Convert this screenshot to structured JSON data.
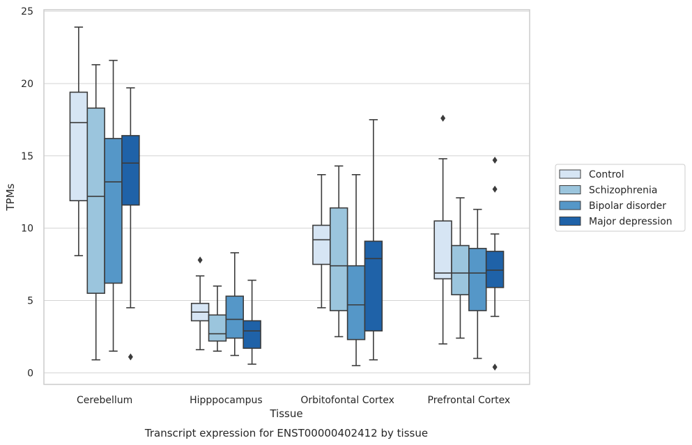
{
  "chart_data": {
    "type": "box",
    "title": "",
    "caption": "Transcript expression for ENST00000402412 by tissue",
    "xlabel": "Tissue",
    "ylabel": "TPMs",
    "ylim": [
      -0.8,
      25.1
    ],
    "yticks": [
      "0",
      "5",
      "10",
      "15",
      "20",
      "25"
    ],
    "grid": "horizontal",
    "legend_position": "right",
    "categories": [
      "Cerebellum",
      "Hipppocampus",
      "Orbitofontal Cortex",
      "Prefrontal Cortex"
    ],
    "series": [
      {
        "name": "Control",
        "color": "#d6e5f4",
        "boxes": [
          {
            "whislo": 8.1,
            "q1": 11.9,
            "med": 17.3,
            "q3": 19.4,
            "whishi": 23.9,
            "fliers": []
          },
          {
            "whislo": 1.6,
            "q1": 3.6,
            "med": 4.2,
            "q3": 4.8,
            "whishi": 6.7,
            "fliers": [
              7.8
            ]
          },
          {
            "whislo": 4.5,
            "q1": 7.5,
            "med": 9.2,
            "q3": 10.2,
            "whishi": 13.7,
            "fliers": []
          },
          {
            "whislo": 2.0,
            "q1": 6.5,
            "med": 6.9,
            "q3": 10.5,
            "whishi": 14.8,
            "fliers": [
              17.6
            ]
          }
        ]
      },
      {
        "name": "Schizophrenia",
        "color": "#9bc5dd",
        "boxes": [
          {
            "whislo": 0.9,
            "q1": 5.5,
            "med": 12.2,
            "q3": 18.3,
            "whishi": 21.3,
            "fliers": []
          },
          {
            "whislo": 1.5,
            "q1": 2.2,
            "med": 2.7,
            "q3": 4.0,
            "whishi": 6.0,
            "fliers": []
          },
          {
            "whislo": 2.5,
            "q1": 4.3,
            "med": 7.4,
            "q3": 11.4,
            "whishi": 14.3,
            "fliers": []
          },
          {
            "whislo": 2.4,
            "q1": 5.4,
            "med": 6.9,
            "q3": 8.8,
            "whishi": 12.1,
            "fliers": []
          }
        ]
      },
      {
        "name": "Bipolar disorder",
        "color": "#5597c8",
        "boxes": [
          {
            "whislo": 1.5,
            "q1": 6.2,
            "med": 13.2,
            "q3": 16.2,
            "whishi": 21.6,
            "fliers": []
          },
          {
            "whislo": 1.2,
            "q1": 2.4,
            "med": 3.7,
            "q3": 5.3,
            "whishi": 8.3,
            "fliers": []
          },
          {
            "whislo": 0.5,
            "q1": 2.3,
            "med": 4.7,
            "q3": 7.4,
            "whishi": 13.7,
            "fliers": []
          },
          {
            "whislo": 1.0,
            "q1": 4.3,
            "med": 6.9,
            "q3": 8.6,
            "whishi": 11.3,
            "fliers": []
          }
        ]
      },
      {
        "name": "Major depression",
        "color": "#1f62a8",
        "boxes": [
          {
            "whislo": 4.5,
            "q1": 11.6,
            "med": 14.5,
            "q3": 16.4,
            "whishi": 19.7,
            "fliers": [
              1.1
            ]
          },
          {
            "whislo": 0.6,
            "q1": 1.7,
            "med": 2.9,
            "q3": 3.6,
            "whishi": 6.4,
            "fliers": []
          },
          {
            "whislo": 0.9,
            "q1": 2.9,
            "med": 7.9,
            "q3": 9.1,
            "whishi": 17.5,
            "fliers": []
          },
          {
            "whislo": 3.9,
            "q1": 5.9,
            "med": 7.1,
            "q3": 8.4,
            "whishi": 9.6,
            "fliers": [
              14.7,
              12.7,
              0.4
            ]
          }
        ]
      }
    ]
  }
}
